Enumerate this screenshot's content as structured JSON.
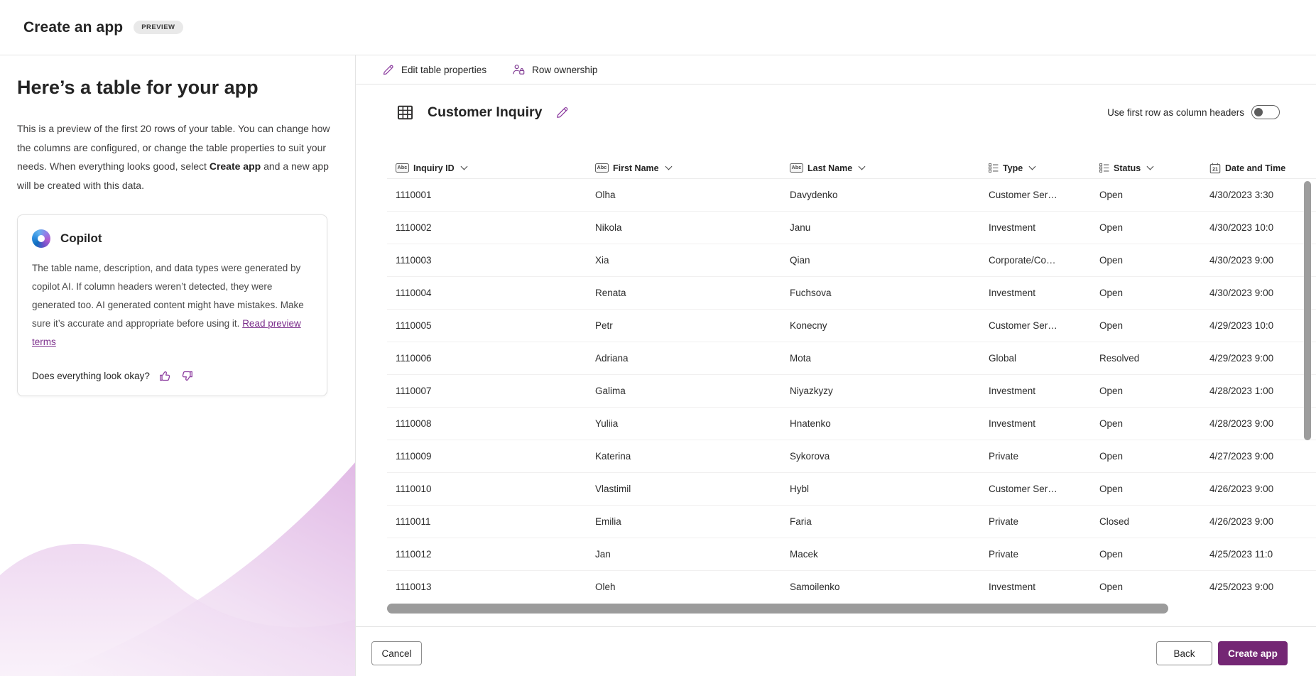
{
  "header": {
    "title": "Create an app",
    "preview_badge": "PREVIEW"
  },
  "sidebar": {
    "heading": "Here’s a table for your app",
    "description_parts": {
      "before": "This is a preview of the first 20 rows of your table. You can change how the columns are configured, or change the table properties to suit your needs. When everything looks good, select ",
      "bold": "Create app",
      "after": " and a new app will be created with this data."
    },
    "copilot": {
      "title": "Copilot",
      "body": "The table name, description, and data types were generated by copilot AI. If column headers weren’t detected, they were generated too. AI generated content might have mistakes. Make sure it’s accurate and appropriate before using it. ",
      "link": "Read preview terms",
      "feedback_question": "Does everything look okay?"
    }
  },
  "toolbar": {
    "edit_table_properties": "Edit table properties",
    "row_ownership": "Row ownership"
  },
  "table": {
    "title": "Customer Inquiry",
    "first_row_toggle_label": "Use first row as column headers",
    "first_row_toggle_state": "off",
    "columns": [
      {
        "key": "inquiry_id",
        "label": "Inquiry ID",
        "icon": "text-field-icon",
        "sortable": true
      },
      {
        "key": "first_name",
        "label": "First Name",
        "icon": "text-field-icon",
        "sortable": true
      },
      {
        "key": "last_name",
        "label": "Last Name",
        "icon": "text-field-icon",
        "sortable": true
      },
      {
        "key": "type",
        "label": "Type",
        "icon": "choice-icon",
        "sortable": true
      },
      {
        "key": "status",
        "label": "Status",
        "icon": "choice-icon",
        "sortable": true
      },
      {
        "key": "date_time",
        "label": "Date and Time",
        "icon": "calendar-icon",
        "sortable": false
      }
    ],
    "rows": [
      {
        "inquiry_id": "1110001",
        "first_name": "Olha",
        "last_name": "Davydenko",
        "type": "Customer Ser…",
        "status": "Open",
        "date_time": "4/30/2023 3:30"
      },
      {
        "inquiry_id": "1110002",
        "first_name": "Nikola",
        "last_name": "Janu",
        "type": "Investment",
        "status": "Open",
        "date_time": "4/30/2023 10:0"
      },
      {
        "inquiry_id": "1110003",
        "first_name": "Xia",
        "last_name": "Qian",
        "type": "Corporate/Co…",
        "status": "Open",
        "date_time": "4/30/2023 9:00"
      },
      {
        "inquiry_id": "1110004",
        "first_name": "Renata",
        "last_name": "Fuchsova",
        "type": "Investment",
        "status": "Open",
        "date_time": "4/30/2023 9:00"
      },
      {
        "inquiry_id": "1110005",
        "first_name": "Petr",
        "last_name": "Konecny",
        "type": "Customer Ser…",
        "status": "Open",
        "date_time": "4/29/2023 10:0"
      },
      {
        "inquiry_id": "1110006",
        "first_name": "Adriana",
        "last_name": "Mota",
        "type": "Global",
        "status": "Resolved",
        "date_time": "4/29/2023 9:00"
      },
      {
        "inquiry_id": "1110007",
        "first_name": "Galima",
        "last_name": "Niyazkyzy",
        "type": "Investment",
        "status": "Open",
        "date_time": "4/28/2023 1:00"
      },
      {
        "inquiry_id": "1110008",
        "first_name": "Yuliia",
        "last_name": "Hnatenko",
        "type": "Investment",
        "status": "Open",
        "date_time": "4/28/2023 9:00"
      },
      {
        "inquiry_id": "1110009",
        "first_name": "Katerina",
        "last_name": "Sykorova",
        "type": "Private",
        "status": "Open",
        "date_time": "4/27/2023 9:00"
      },
      {
        "inquiry_id": "1110010",
        "first_name": "Vlastimil",
        "last_name": "Hybl",
        "type": "Customer Ser…",
        "status": "Open",
        "date_time": "4/26/2023 9:00"
      },
      {
        "inquiry_id": "1110011",
        "first_name": "Emilia",
        "last_name": "Faria",
        "type": "Private",
        "status": "Closed",
        "date_time": "4/26/2023 9:00"
      },
      {
        "inquiry_id": "1110012",
        "first_name": "Jan",
        "last_name": "Macek",
        "type": "Private",
        "status": "Open",
        "date_time": "4/25/2023 11:0"
      },
      {
        "inquiry_id": "1110013",
        "first_name": "Oleh",
        "last_name": "Samoilenko",
        "type": "Investment",
        "status": "Open",
        "date_time": "4/25/2023 9:00"
      }
    ]
  },
  "footer": {
    "cancel": "Cancel",
    "back": "Back",
    "create_app": "Create app"
  },
  "icons": {
    "pencil": "edit-pencil-icon",
    "person_lock": "row-ownership-icon",
    "table_grid": "table-icon",
    "text_field": "text-field-icon (Abc)",
    "choice": "choice-list-icon",
    "calendar": "calendar-21-icon",
    "thumbs": [
      "thumbs-up-icon",
      "thumbs-down-icon"
    ],
    "copilot": "copilot-logo"
  },
  "colors": {
    "accent_purple": "#742774",
    "icon_purple": "#8b3a9e",
    "link_purple": "#7b2d8b",
    "text_primary": "#242424",
    "border": "#e4e4e4",
    "row_divider": "#f1f0f0",
    "scrollbar": "#9b9b9b",
    "wave_pink": "#e5c0e8"
  }
}
